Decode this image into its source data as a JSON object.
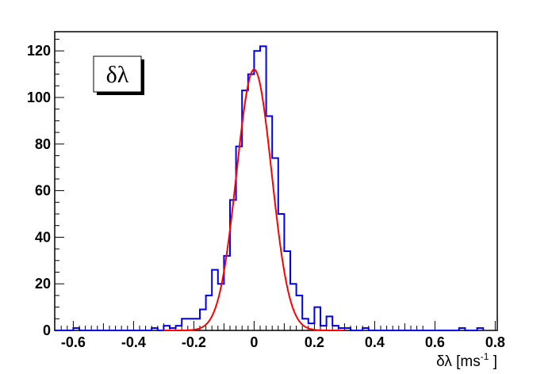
{
  "chart_data": {
    "type": "histogram",
    "title": "",
    "legend_label": "δλ",
    "xlabel": {
      "main": "δλ [ms",
      "sup": "-1",
      "close": " ]"
    },
    "ylabel": "",
    "xlim": [
      -0.65,
      0.81
    ],
    "ylim": [
      0,
      128
    ],
    "x_major_ticks": [
      -0.6,
      -0.4,
      -0.2,
      0,
      0.2,
      0.4,
      0.6,
      0.8
    ],
    "x_tick_labels": [
      "-0.6",
      "-0.4",
      "-0.2",
      "0",
      "0.2",
      "0.4",
      "0.6",
      "0.8"
    ],
    "y_major_ticks": [
      0,
      20,
      40,
      60,
      80,
      100,
      120
    ],
    "y_tick_labels": [
      "0",
      "20",
      "40",
      "60",
      "80",
      "100",
      "120"
    ],
    "histogram": {
      "name": "δλ",
      "color": "#0000ee",
      "bin_edges": [
        -0.62,
        -0.6,
        -0.58,
        -0.34,
        -0.32,
        -0.3,
        -0.28,
        -0.26,
        -0.24,
        -0.22,
        -0.2,
        -0.18,
        -0.16,
        -0.14,
        -0.12,
        -0.1,
        -0.08,
        -0.06,
        -0.04,
        -0.02,
        0.0,
        0.02,
        0.04,
        0.06,
        0.08,
        0.1,
        0.12,
        0.14,
        0.16,
        0.18,
        0.2,
        0.22,
        0.24,
        0.26,
        0.28,
        0.3,
        0.32,
        0.36,
        0.38,
        0.68,
        0.7,
        0.74,
        0.76
      ],
      "counts": [
        0,
        1,
        0,
        1,
        0,
        2,
        1,
        2,
        5,
        5,
        5,
        9,
        15,
        26,
        20,
        32,
        56,
        79,
        103,
        110,
        120,
        122,
        92,
        74,
        50,
        34,
        20,
        15,
        5,
        3,
        10,
        2,
        6,
        2,
        1,
        1,
        0,
        1,
        0,
        1,
        0,
        1,
        0
      ]
    },
    "fit": {
      "name": "gaussian fit",
      "color": "#ff0000",
      "amplitude": 112,
      "mean": 0.0,
      "sigma": 0.058,
      "x_range": [
        -0.3,
        0.3
      ]
    },
    "grid": false,
    "legend_position": "top-left"
  }
}
